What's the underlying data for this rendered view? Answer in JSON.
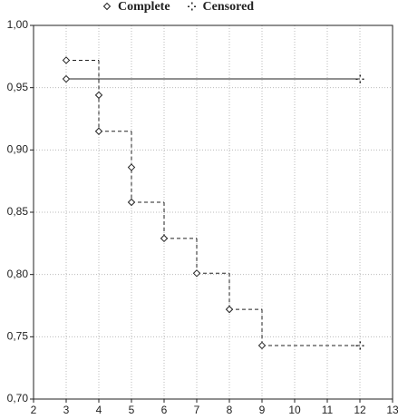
{
  "chart_data": {
    "type": "step",
    "xlim": [
      2,
      13
    ],
    "xticks": [
      2,
      3,
      4,
      5,
      6,
      7,
      8,
      9,
      10,
      11,
      12,
      13
    ],
    "ylim": [
      0.7,
      1.0
    ],
    "yticks": [
      {
        "value": 0.7,
        "label": "0,70"
      },
      {
        "value": 0.75,
        "label": "0,75"
      },
      {
        "value": 0.8,
        "label": "0,80"
      },
      {
        "value": 0.85,
        "label": "0,85"
      },
      {
        "value": 0.9,
        "label": "0,90"
      },
      {
        "value": 0.95,
        "label": "0,95"
      },
      {
        "value": 1.0,
        "label": "1,00"
      }
    ],
    "grid": true,
    "curves": [
      {
        "dash": false,
        "color": "#222222",
        "x": [
          3,
          12
        ],
        "values": [
          0.957,
          0.957
        ]
      },
      {
        "dash": true,
        "color": "#222222",
        "x": [
          3,
          4,
          5,
          6,
          7,
          8,
          9,
          12
        ],
        "values": [
          0.972,
          0.915,
          0.858,
          0.829,
          0.801,
          0.772,
          0.743,
          0.743
        ]
      }
    ],
    "series": [
      {
        "name": "Complete",
        "marker": "diamond",
        "color": "#222222",
        "x": [
          3,
          3,
          4,
          4,
          5,
          5,
          6,
          7,
          8,
          9
        ],
        "values": [
          0.972,
          0.957,
          0.944,
          0.915,
          0.886,
          0.858,
          0.829,
          0.801,
          0.772,
          0.743
        ]
      },
      {
        "name": "Censored",
        "marker": "cross",
        "color": "#222222",
        "x": [
          12,
          12
        ],
        "values": [
          0.957,
          0.743
        ]
      }
    ]
  }
}
